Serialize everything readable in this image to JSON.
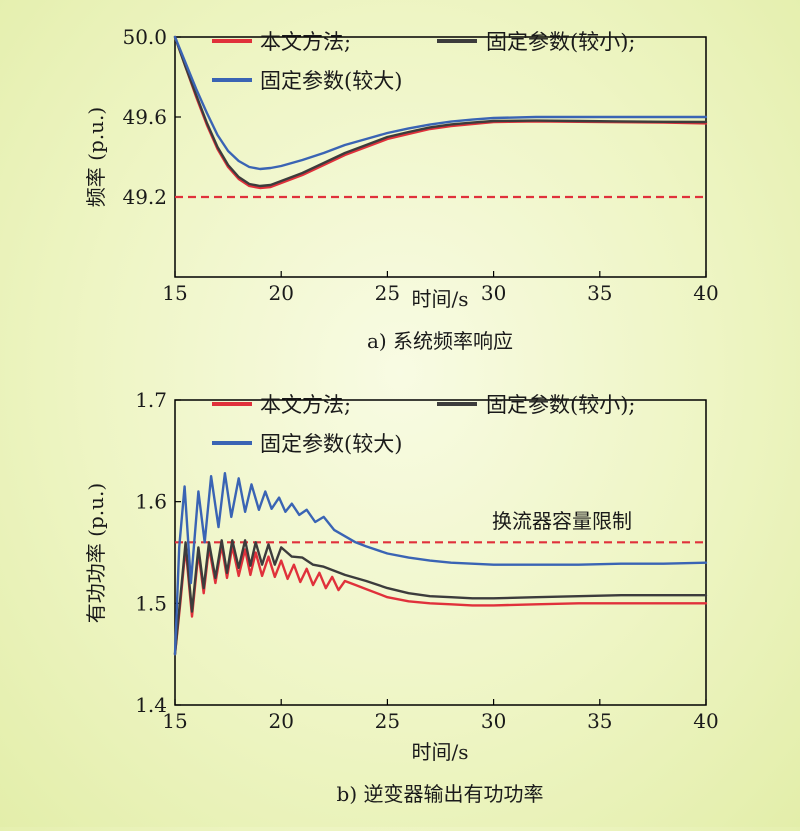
{
  "colors": {
    "proposed": "#e0313b",
    "fixed_small": "#3c3c3c",
    "fixed_large": "#3a64b4",
    "limit": "#e0313b"
  },
  "legend": {
    "proposed": "本文方法;",
    "fixed_small": "固定参数(较小);",
    "fixed_large": "固定参数(较大)"
  },
  "chart_data": [
    {
      "type": "line",
      "caption": "a) 系统频率响应",
      "xlabel": "时间/s",
      "ylabel": "频率 (p.u.)",
      "xlim": [
        15,
        40
      ],
      "ylim": [
        48.8,
        50.0
      ],
      "xticks": [
        "15",
        "20",
        "25",
        "30",
        "35",
        "40"
      ],
      "yticks": [
        "49.2",
        "49.6",
        "50.0"
      ],
      "reference_line": {
        "y": 49.2,
        "label": ""
      },
      "series": [
        {
          "key": "proposed",
          "name": "本文方法",
          "x": [
            15,
            15.5,
            16,
            16.5,
            17,
            17.5,
            18,
            18.5,
            19,
            19.5,
            20,
            21,
            22,
            23,
            24,
            25,
            26,
            27,
            28,
            29,
            30,
            32,
            34,
            36,
            38,
            40
          ],
          "y": [
            50.0,
            49.85,
            49.7,
            49.56,
            49.44,
            49.35,
            49.29,
            49.255,
            49.245,
            49.25,
            49.27,
            49.31,
            49.36,
            49.41,
            49.45,
            49.49,
            49.515,
            49.54,
            49.555,
            49.565,
            49.575,
            49.578,
            49.576,
            49.574,
            49.572,
            49.568
          ]
        },
        {
          "key": "fixed_small",
          "name": "固定参数(较小)",
          "x": [
            15,
            15.5,
            16,
            16.5,
            17,
            17.5,
            18,
            18.5,
            19,
            19.5,
            20,
            21,
            22,
            23,
            24,
            25,
            26,
            27,
            28,
            29,
            30,
            32,
            34,
            36,
            38,
            40
          ],
          "y": [
            50.0,
            49.85,
            49.71,
            49.57,
            49.45,
            49.36,
            49.3,
            49.265,
            49.255,
            49.26,
            49.28,
            49.32,
            49.37,
            49.42,
            49.46,
            49.5,
            49.525,
            49.548,
            49.563,
            49.572,
            49.58,
            49.582,
            49.58,
            49.578,
            49.576,
            49.575
          ]
        },
        {
          "key": "fixed_large",
          "name": "固定参数(较大)",
          "x": [
            15,
            15.5,
            16,
            16.5,
            17,
            17.5,
            18,
            18.5,
            19,
            19.5,
            20,
            21,
            22,
            23,
            24,
            25,
            26,
            27,
            28,
            29,
            30,
            32,
            34,
            36,
            38,
            40
          ],
          "y": [
            50.0,
            49.87,
            49.74,
            49.62,
            49.51,
            49.43,
            49.38,
            49.35,
            49.34,
            49.345,
            49.355,
            49.385,
            49.42,
            49.46,
            49.49,
            49.52,
            49.543,
            49.562,
            49.577,
            49.587,
            49.595,
            49.6,
            49.6,
            49.6,
            49.6,
            49.6
          ]
        }
      ]
    },
    {
      "type": "line",
      "caption": "b) 逆变器输出有功功率",
      "xlabel": "时间/s",
      "ylabel": "有功功率 (p.u.)",
      "xlim": [
        15,
        40
      ],
      "ylim": [
        1.4,
        1.7
      ],
      "xticks": [
        "15",
        "20",
        "25",
        "30",
        "35",
        "40"
      ],
      "yticks": [
        "1.4",
        "1.5",
        "1.6",
        "1.7"
      ],
      "reference_line": {
        "y": 1.56,
        "label": "换流器容量限制"
      },
      "series": [
        {
          "key": "proposed",
          "name": "本文方法",
          "x": [
            15,
            15.25,
            15.5,
            15.8,
            16.1,
            16.35,
            16.6,
            16.9,
            17.2,
            17.45,
            17.7,
            18.0,
            18.3,
            18.55,
            18.8,
            19.1,
            19.4,
            19.7,
            20.0,
            20.3,
            20.6,
            20.9,
            21.2,
            21.5,
            21.8,
            22.1,
            22.4,
            22.7,
            23.0,
            23.5,
            24,
            25,
            26,
            27,
            28,
            29,
            30,
            32,
            34,
            36,
            38,
            40
          ],
          "y": [
            1.45,
            1.5,
            1.555,
            1.487,
            1.55,
            1.51,
            1.555,
            1.52,
            1.557,
            1.525,
            1.556,
            1.527,
            1.553,
            1.528,
            1.55,
            1.527,
            1.546,
            1.526,
            1.542,
            1.524,
            1.538,
            1.521,
            1.534,
            1.518,
            1.53,
            1.515,
            1.526,
            1.513,
            1.522,
            1.518,
            1.514,
            1.506,
            1.502,
            1.5,
            1.499,
            1.498,
            1.498,
            1.499,
            1.5,
            1.5,
            1.5,
            1.5
          ]
        },
        {
          "key": "fixed_small",
          "name": "固定参数(较小)",
          "x": [
            15,
            15.25,
            15.5,
            15.8,
            16.1,
            16.35,
            16.6,
            16.9,
            17.2,
            17.45,
            17.7,
            18.0,
            18.3,
            18.55,
            18.8,
            19.1,
            19.4,
            19.7,
            20.0,
            20.5,
            21,
            21.5,
            22,
            23,
            24,
            25,
            26,
            27,
            28,
            29,
            30,
            32,
            34,
            36,
            38,
            40
          ],
          "y": [
            1.45,
            1.505,
            1.56,
            1.492,
            1.555,
            1.515,
            1.56,
            1.525,
            1.562,
            1.53,
            1.562,
            1.535,
            1.562,
            1.537,
            1.56,
            1.538,
            1.558,
            1.538,
            1.555,
            1.546,
            1.545,
            1.538,
            1.536,
            1.528,
            1.522,
            1.515,
            1.51,
            1.507,
            1.506,
            1.505,
            1.505,
            1.506,
            1.507,
            1.508,
            1.508,
            1.508
          ]
        },
        {
          "key": "fixed_large",
          "name": "固定参数(较大)",
          "x": [
            15,
            15.2,
            15.45,
            15.75,
            16.1,
            16.4,
            16.7,
            17.05,
            17.35,
            17.65,
            18.0,
            18.3,
            18.6,
            18.95,
            19.25,
            19.55,
            19.9,
            20.2,
            20.5,
            20.85,
            21.2,
            21.6,
            22,
            22.5,
            23,
            23.5,
            24,
            25,
            26,
            27,
            28,
            29,
            30,
            32,
            34,
            36,
            38,
            40
          ],
          "y": [
            1.45,
            1.555,
            1.615,
            1.52,
            1.61,
            1.56,
            1.625,
            1.575,
            1.628,
            1.585,
            1.623,
            1.59,
            1.617,
            1.592,
            1.61,
            1.593,
            1.604,
            1.59,
            1.598,
            1.587,
            1.592,
            1.58,
            1.585,
            1.572,
            1.566,
            1.56,
            1.556,
            1.549,
            1.545,
            1.542,
            1.54,
            1.539,
            1.538,
            1.538,
            1.538,
            1.539,
            1.539,
            1.54
          ]
        }
      ]
    }
  ]
}
